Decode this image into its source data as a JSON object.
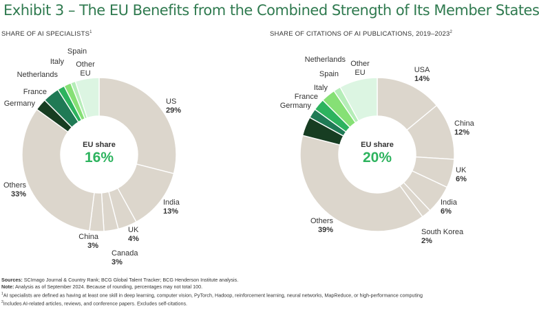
{
  "title": "Exhibit 3 – The EU Benefits from the Combined Strength of Its Member States",
  "colors": {
    "title": "#2f7a4f",
    "other_countries": "#dcd6cc",
    "germany": "#173d22",
    "france": "#1f7a55",
    "italy": "#2db35e",
    "netherlands": "#86e075",
    "spain": "#b5edb8",
    "other_eu": "#dcf5e2",
    "center_value": "#2db35e"
  },
  "chart_data": [
    {
      "type": "pie",
      "donut": true,
      "title": "SHARE OF AI SPECIALISTS",
      "title_footnote": "1",
      "center_label": "EU share",
      "center_value": "16%",
      "slices": [
        {
          "name": "US",
          "value": 29,
          "label": "29%",
          "group": "non-eu",
          "color": "#dcd6cc"
        },
        {
          "name": "India",
          "value": 13,
          "label": "13%",
          "group": "non-eu",
          "color": "#dcd6cc"
        },
        {
          "name": "UK",
          "value": 4,
          "label": "4%",
          "group": "non-eu",
          "color": "#dcd6cc"
        },
        {
          "name": "Canada",
          "value": 3,
          "label": "3%",
          "group": "non-eu",
          "color": "#dcd6cc"
        },
        {
          "name": "China",
          "value": 3,
          "label": "3%",
          "group": "non-eu",
          "color": "#dcd6cc"
        },
        {
          "name": "Others",
          "value": 33,
          "label": "33%",
          "group": "non-eu",
          "color": "#dcd6cc"
        },
        {
          "name": "Germany",
          "value": 2.5,
          "label": "",
          "group": "eu",
          "color": "#173d22"
        },
        {
          "name": "France",
          "value": 3.5,
          "label": "",
          "group": "eu",
          "color": "#1f7a55"
        },
        {
          "name": "Italy",
          "value": 1.5,
          "label": "",
          "group": "eu",
          "color": "#2db35e"
        },
        {
          "name": "Netherlands",
          "value": 1.5,
          "label": "",
          "group": "eu",
          "color": "#86e075"
        },
        {
          "name": "Spain",
          "value": 1,
          "label": "",
          "group": "eu",
          "color": "#b5edb8"
        },
        {
          "name": "Other EU",
          "value": 5,
          "label": "",
          "group": "eu",
          "color": "#dcf5e2"
        }
      ]
    },
    {
      "type": "pie",
      "donut": true,
      "title": "SHARE OF CITATIONS OF AI PUBLICATIONS, 2019–2023",
      "title_footnote": "2",
      "center_label": "EU share",
      "center_value": "20%",
      "slices": [
        {
          "name": "USA",
          "value": 14,
          "label": "14%",
          "group": "non-eu",
          "color": "#dcd6cc"
        },
        {
          "name": "China",
          "value": 12,
          "label": "12%",
          "group": "non-eu",
          "color": "#dcd6cc"
        },
        {
          "name": "UK",
          "value": 6,
          "label": "6%",
          "group": "non-eu",
          "color": "#dcd6cc"
        },
        {
          "name": "India",
          "value": 6,
          "label": "6%",
          "group": "non-eu",
          "color": "#dcd6cc"
        },
        {
          "name": "South Korea",
          "value": 2,
          "label": "2%",
          "group": "non-eu",
          "color": "#dcd6cc"
        },
        {
          "name": "Others",
          "value": 39,
          "label": "39%",
          "group": "non-eu",
          "color": "#dcd6cc"
        },
        {
          "name": "Germany",
          "value": 4,
          "label": "",
          "group": "eu",
          "color": "#173d22"
        },
        {
          "name": "France",
          "value": 2,
          "label": "",
          "group": "eu",
          "color": "#1f7a55"
        },
        {
          "name": "Italy",
          "value": 2.5,
          "label": "",
          "group": "eu",
          "color": "#2db35e"
        },
        {
          "name": "Netherlands",
          "value": 3,
          "label": "",
          "group": "eu",
          "color": "#86e075"
        },
        {
          "name": "Spain",
          "value": 1.5,
          "label": "",
          "group": "eu",
          "color": "#b5edb8"
        },
        {
          "name": "Other EU",
          "value": 8,
          "label": "",
          "group": "eu",
          "color": "#dcf5e2"
        }
      ]
    }
  ],
  "footer": {
    "sources_label": "Sources:",
    "sources_text": "SCImago Journal & Country Rank; BCG Global Talent Tracker; BCG Henderson Institute analysis.",
    "note_label": "Note:",
    "note_text": "Analysis as of September 2024. Because of rounding, percentages may not total 100.",
    "footnote_1_marker": "1",
    "footnote_1": "AI specialists are defined as having at least one skill in deep learning, computer vision, PyTorch, Hadoop, reinforcement learning, neural networks, MapReduce, or high-performance computing",
    "footnote_2_marker": "2",
    "footnote_2": "Includes AI-related articles, reviews, and conference papers. Excludes self-citations."
  }
}
